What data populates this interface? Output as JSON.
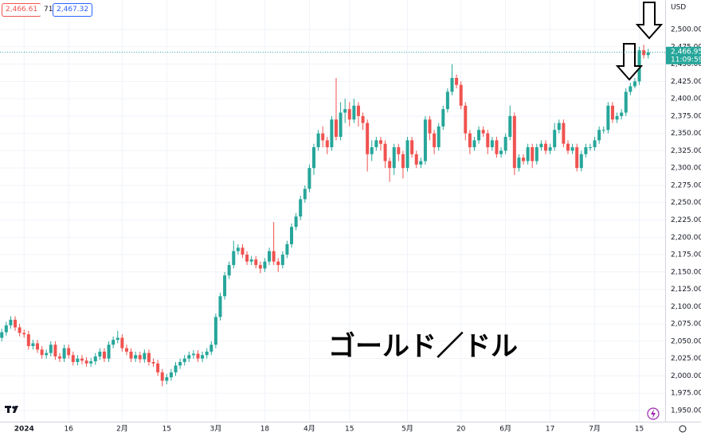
{
  "header": {
    "sell": "2,466.61",
    "spread": "71",
    "buy": "2,467.32"
  },
  "chart_data": {
    "type": "candlestick",
    "currency": "USD",
    "annotation": "ゴールド／ドル",
    "price_tag": {
      "label": "2,466.95",
      "time": "11:09:59"
    },
    "up_color": "#26a69a",
    "down_color": "#ef5350",
    "grid": true,
    "x": [
      0,
      1,
      2,
      3,
      4,
      5,
      6,
      7,
      8,
      9,
      10,
      11,
      12,
      13,
      14,
      15,
      16,
      17,
      18,
      19,
      20,
      21,
      22,
      23,
      24,
      25,
      26,
      27,
      28,
      29,
      30,
      31,
      32,
      33,
      34,
      35,
      36,
      37,
      38,
      39,
      40,
      41,
      42,
      43,
      44,
      45,
      46,
      47,
      48,
      49,
      50,
      51,
      52,
      53,
      54,
      55,
      56,
      57,
      58,
      59,
      60,
      61,
      62,
      63,
      64,
      65,
      66,
      67,
      68,
      69,
      70,
      71,
      72,
      73,
      74,
      75,
      76,
      77,
      78,
      79,
      80,
      81,
      82,
      83,
      84,
      85,
      86,
      87,
      88,
      89,
      90,
      91,
      92,
      93,
      94,
      95,
      96,
      97,
      98,
      99,
      100,
      101,
      102,
      103,
      104,
      105,
      106,
      107,
      108,
      109,
      110,
      111,
      112,
      113,
      114,
      115,
      116,
      117,
      118,
      119,
      120,
      121,
      122,
      123,
      124,
      125,
      126,
      127,
      128,
      129,
      130,
      131,
      132,
      133,
      134,
      135,
      136,
      137,
      138,
      139,
      140,
      141,
      142,
      143,
      144,
      145
    ],
    "open": [
      2055,
      2063,
      2073,
      2081,
      2070,
      2062,
      2060,
      2043,
      2047,
      2038,
      2030,
      2033,
      2045,
      2028,
      2025,
      2040,
      2030,
      2020,
      2025,
      2022,
      2018,
      2021,
      2028,
      2035,
      2025,
      2045,
      2052,
      2055,
      2040,
      2035,
      2025,
      2030,
      2024,
      2033,
      2020,
      2018,
      2005,
      1993,
      1998,
      2005,
      2015,
      2020,
      2025,
      2030,
      2032,
      2025,
      2030,
      2035,
      2045,
      2085,
      2115,
      2145,
      2160,
      2180,
      2185,
      2175,
      2165,
      2168,
      2160,
      2155,
      2165,
      2180,
      2165,
      2160,
      2175,
      2190,
      2215,
      2230,
      2255,
      2270,
      2300,
      2330,
      2350,
      2340,
      2330,
      2370,
      2345,
      2380,
      2385,
      2370,
      2390,
      2375,
      2365,
      2320,
      2330,
      2340,
      2335,
      2310,
      2300,
      2330,
      2320,
      2300,
      2340,
      2320,
      2305,
      2310,
      2370,
      2350,
      2330,
      2360,
      2385,
      2410,
      2430,
      2420,
      2390,
      2350,
      2330,
      2340,
      2355,
      2350,
      2330,
      2340,
      2320,
      2325,
      2345,
      2375,
      2300,
      2315,
      2310,
      2330,
      2310,
      2330,
      2335,
      2325,
      2330,
      2355,
      2365,
      2335,
      2325,
      2330,
      2300,
      2320,
      2330,
      2330,
      2340,
      2355,
      2355,
      2390,
      2370,
      2375,
      2380,
      2410,
      2418,
      2425,
      2470,
      2463
    ],
    "high": [
      2068,
      2078,
      2086,
      2086,
      2075,
      2067,
      2065,
      2052,
      2052,
      2043,
      2038,
      2050,
      2050,
      2033,
      2045,
      2045,
      2035,
      2030,
      2030,
      2027,
      2026,
      2033,
      2040,
      2040,
      2050,
      2057,
      2065,
      2060,
      2045,
      2040,
      2035,
      2035,
      2038,
      2038,
      2025,
      2023,
      2010,
      2003,
      2010,
      2020,
      2025,
      2030,
      2035,
      2037,
      2037,
      2035,
      2040,
      2050,
      2090,
      2120,
      2150,
      2165,
      2195,
      2190,
      2190,
      2180,
      2173,
      2173,
      2165,
      2170,
      2185,
      2222,
      2170,
      2180,
      2195,
      2220,
      2235,
      2260,
      2275,
      2305,
      2335,
      2355,
      2360,
      2345,
      2375,
      2430,
      2395,
      2400,
      2395,
      2400,
      2395,
      2380,
      2370,
      2340,
      2345,
      2345,
      2340,
      2315,
      2335,
      2335,
      2325,
      2345,
      2345,
      2325,
      2315,
      2375,
      2375,
      2355,
      2365,
      2390,
      2415,
      2450,
      2435,
      2425,
      2395,
      2355,
      2345,
      2360,
      2360,
      2355,
      2345,
      2345,
      2330,
      2350,
      2390,
      2380,
      2320,
      2320,
      2335,
      2335,
      2335,
      2340,
      2340,
      2335,
      2365,
      2370,
      2370,
      2340,
      2335,
      2335,
      2325,
      2335,
      2335,
      2345,
      2360,
      2360,
      2395,
      2395,
      2380,
      2385,
      2415,
      2423,
      2430,
      2475,
      2478,
      2472
    ],
    "low": [
      2050,
      2058,
      2068,
      2065,
      2057,
      2055,
      2038,
      2038,
      2033,
      2025,
      2025,
      2028,
      2023,
      2020,
      2020,
      2025,
      2015,
      2015,
      2017,
      2013,
      2013,
      2016,
      2023,
      2020,
      2020,
      2040,
      2047,
      2035,
      2030,
      2020,
      2020,
      2019,
      2019,
      2015,
      2013,
      2000,
      1985,
      1988,
      1993,
      2000,
      2010,
      2015,
      2020,
      2025,
      2020,
      2020,
      2025,
      2030,
      2040,
      2080,
      2110,
      2140,
      2155,
      2175,
      2170,
      2160,
      2160,
      2155,
      2148,
      2150,
      2160,
      2160,
      2150,
      2155,
      2170,
      2185,
      2210,
      2225,
      2250,
      2265,
      2290,
      2325,
      2330,
      2320,
      2325,
      2340,
      2340,
      2365,
      2360,
      2365,
      2360,
      2355,
      2295,
      2310,
      2325,
      2325,
      2300,
      2280,
      2290,
      2310,
      2285,
      2295,
      2315,
      2300,
      2300,
      2305,
      2340,
      2320,
      2325,
      2355,
      2380,
      2405,
      2415,
      2385,
      2340,
      2320,
      2325,
      2335,
      2345,
      2320,
      2325,
      2315,
      2315,
      2320,
      2340,
      2290,
      2295,
      2305,
      2305,
      2300,
      2305,
      2325,
      2320,
      2320,
      2325,
      2350,
      2330,
      2320,
      2320,
      2295,
      2295,
      2315,
      2325,
      2325,
      2335,
      2350,
      2350,
      2365,
      2365,
      2370,
      2375,
      2405,
      2415,
      2420,
      2458,
      2458
    ],
    "close": [
      2063,
      2073,
      2081,
      2070,
      2062,
      2060,
      2043,
      2047,
      2038,
      2030,
      2033,
      2045,
      2028,
      2025,
      2040,
      2030,
      2020,
      2025,
      2022,
      2018,
      2021,
      2028,
      2035,
      2025,
      2045,
      2052,
      2055,
      2040,
      2035,
      2025,
      2030,
      2024,
      2033,
      2020,
      2018,
      2005,
      1993,
      1998,
      2005,
      2015,
      2020,
      2025,
      2030,
      2032,
      2025,
      2030,
      2035,
      2045,
      2085,
      2115,
      2145,
      2160,
      2180,
      2185,
      2175,
      2165,
      2168,
      2160,
      2155,
      2165,
      2180,
      2165,
      2160,
      2175,
      2190,
      2215,
      2230,
      2255,
      2270,
      2300,
      2330,
      2350,
      2340,
      2330,
      2370,
      2345,
      2380,
      2385,
      2370,
      2390,
      2375,
      2365,
      2320,
      2330,
      2340,
      2335,
      2310,
      2300,
      2330,
      2320,
      2300,
      2340,
      2320,
      2305,
      2310,
      2370,
      2350,
      2330,
      2360,
      2385,
      2410,
      2430,
      2420,
      2390,
      2350,
      2330,
      2340,
      2355,
      2350,
      2330,
      2340,
      2320,
      2325,
      2345,
      2375,
      2300,
      2315,
      2310,
      2330,
      2310,
      2330,
      2335,
      2325,
      2330,
      2355,
      2365,
      2335,
      2325,
      2330,
      2300,
      2320,
      2330,
      2330,
      2340,
      2355,
      2355,
      2390,
      2370,
      2375,
      2380,
      2410,
      2418,
      2425,
      2470,
      2463,
      2466.95
    ],
    "xlim": [
      -0.4,
      148.8
    ],
    "xticks": [
      {
        "value": 5,
        "label": "2024"
      },
      {
        "value": 15,
        "label": "16"
      },
      {
        "value": 27,
        "label": "2月"
      },
      {
        "value": 37,
        "label": "15"
      },
      {
        "value": 48,
        "label": "3月"
      },
      {
        "value": 59,
        "label": "18"
      },
      {
        "value": 69,
        "label": "4月"
      },
      {
        "value": 78,
        "label": "15"
      },
      {
        "value": 91,
        "label": "5月"
      },
      {
        "value": 103,
        "label": "20"
      },
      {
        "value": 113,
        "label": "6月"
      },
      {
        "value": 123,
        "label": "17"
      },
      {
        "value": 133,
        "label": "7月"
      },
      {
        "value": 143,
        "label": "15"
      }
    ],
    "ylim": [
      1936.2,
      2542.5
    ],
    "yticks": [
      {
        "value": 1950,
        "label": "1,950.00"
      },
      {
        "value": 1975,
        "label": "1,975.00"
      },
      {
        "value": 2000,
        "label": "2,000.00"
      },
      {
        "value": 2025,
        "label": "2,025.00"
      },
      {
        "value": 2050,
        "label": "2,050.00"
      },
      {
        "value": 2075,
        "label": "2,075.00"
      },
      {
        "value": 2100,
        "label": "2,100.00"
      },
      {
        "value": 2125,
        "label": "2,125.00"
      },
      {
        "value": 2150,
        "label": "2,150.00"
      },
      {
        "value": 2175,
        "label": "2,175.00"
      },
      {
        "value": 2200,
        "label": "2,200.00"
      },
      {
        "value": 2225,
        "label": "2,225.00"
      },
      {
        "value": 2250,
        "label": "2,250.00"
      },
      {
        "value": 2275,
        "label": "2,275.00"
      },
      {
        "value": 2300,
        "label": "2,300.00"
      },
      {
        "value": 2325,
        "label": "2,325.00"
      },
      {
        "value": 2350,
        "label": "2,350.00"
      },
      {
        "value": 2375,
        "label": "2,375.00"
      },
      {
        "value": 2400,
        "label": "2,400.00"
      },
      {
        "value": 2425,
        "label": "2,425.00"
      },
      {
        "value": 2450,
        "label": "2,450.00"
      },
      {
        "value": 2475,
        "label": "2,475.00"
      },
      {
        "value": 2500,
        "label": "2,500.00"
      }
    ]
  }
}
